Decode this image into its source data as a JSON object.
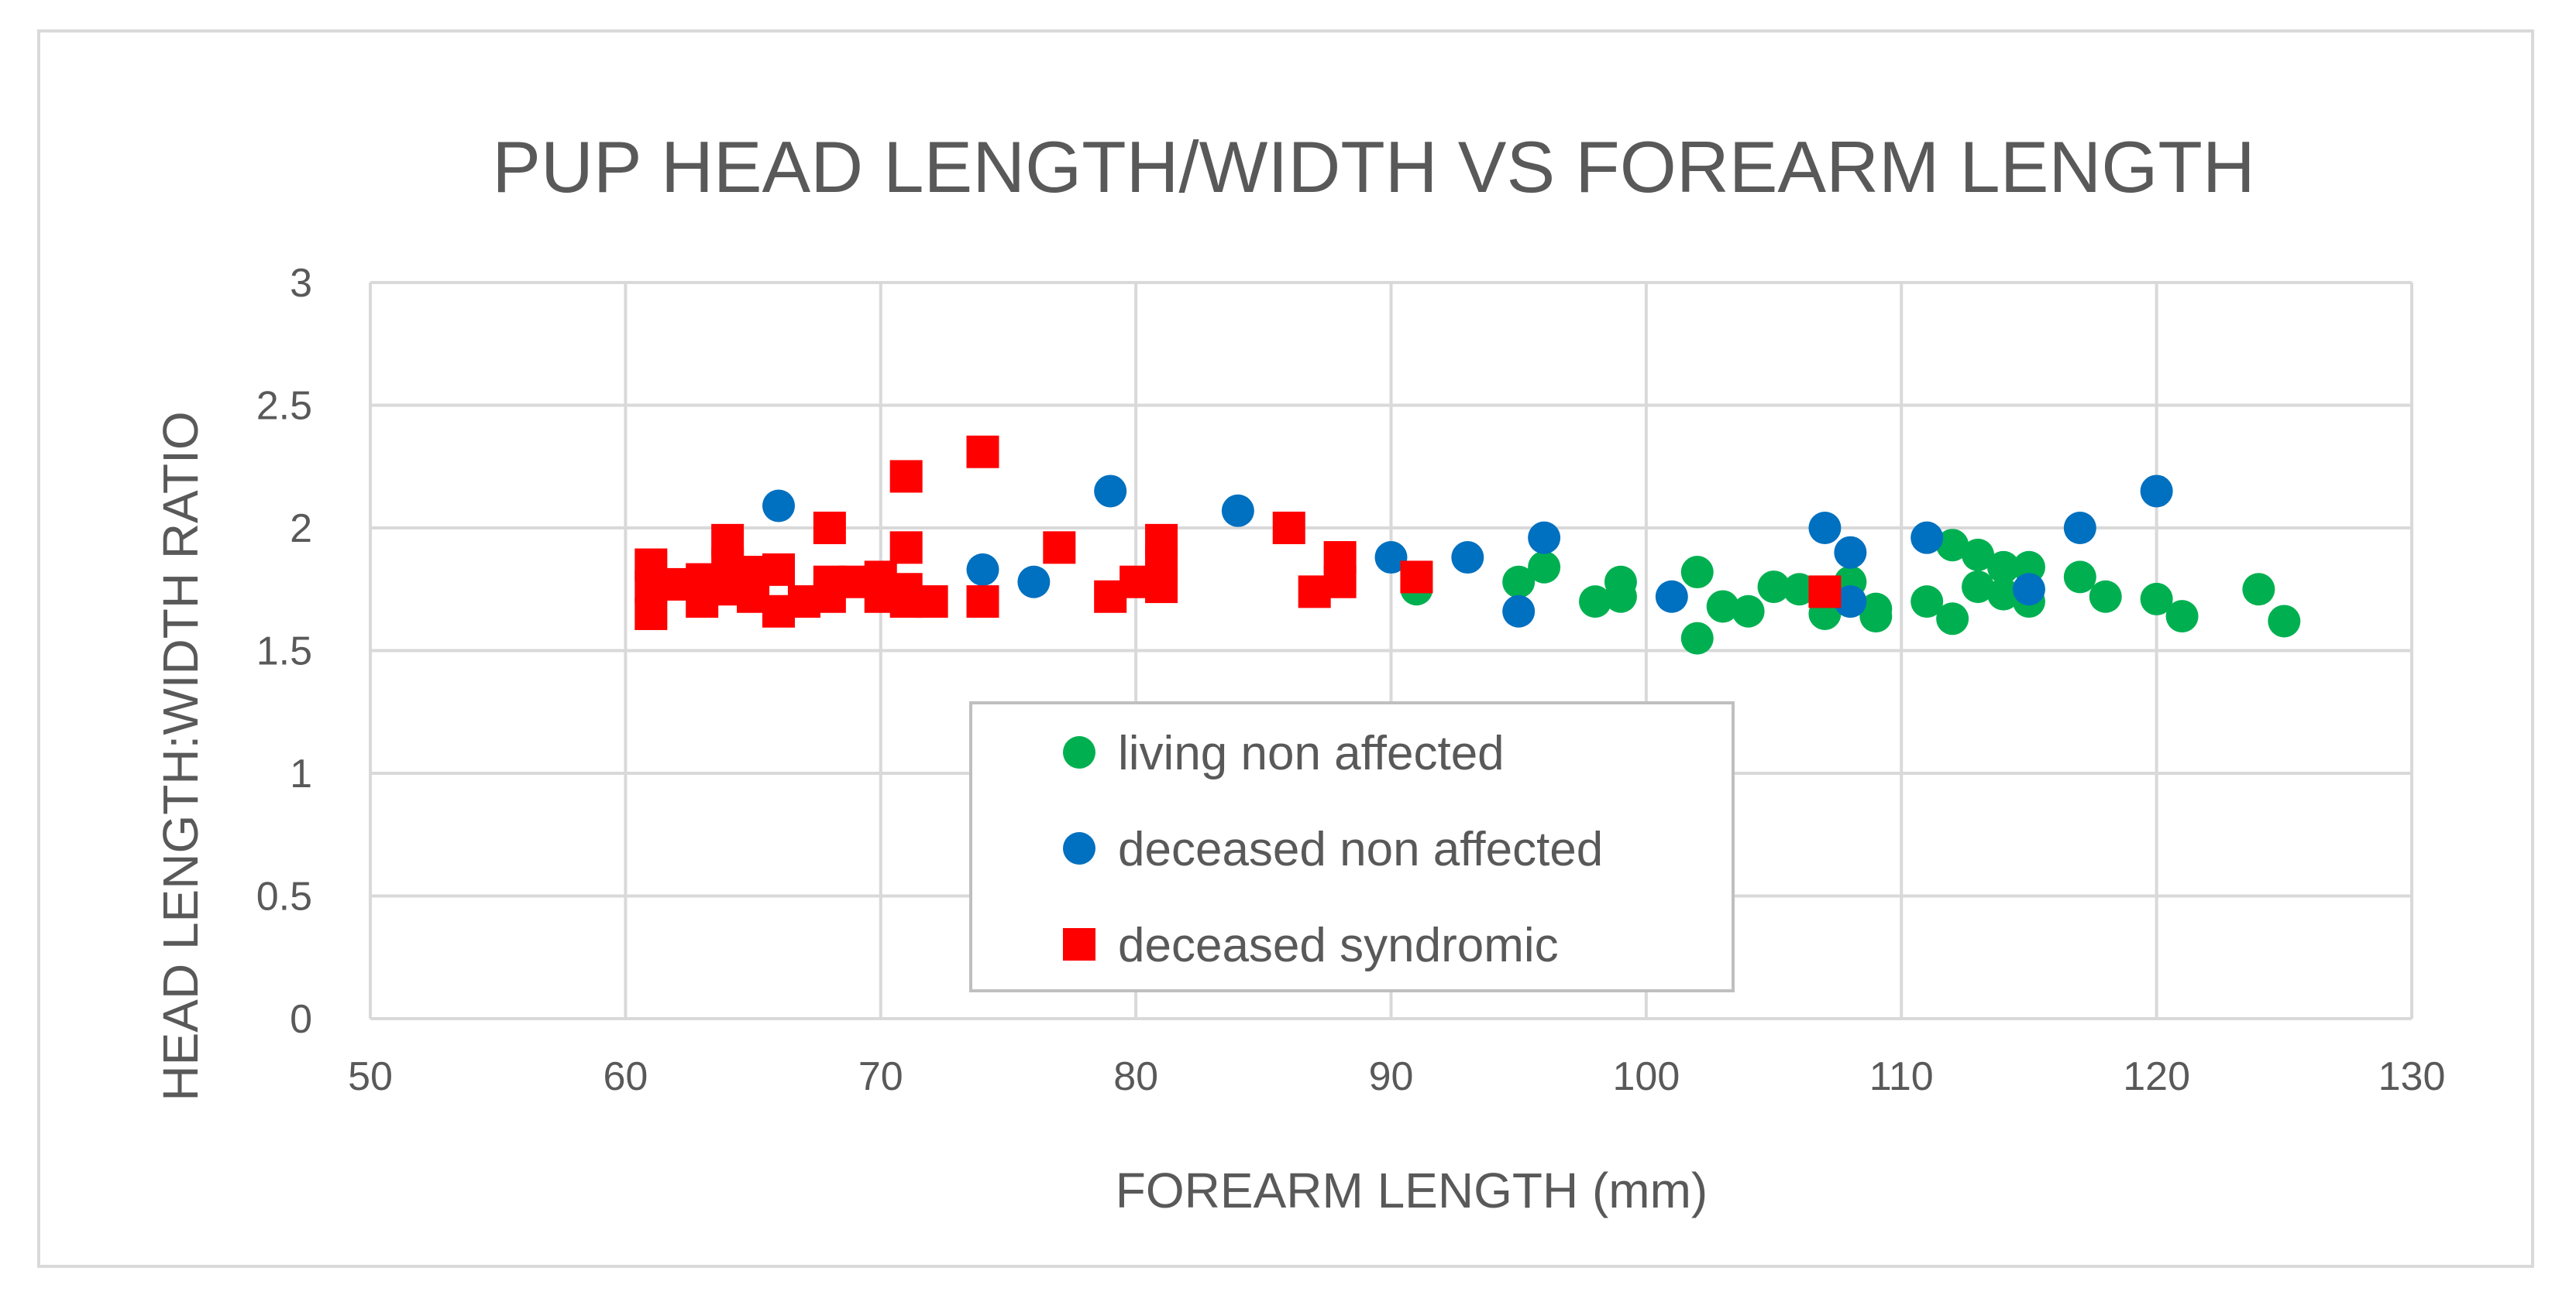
{
  "chart_data": {
    "type": "scatter",
    "title": "PUP HEAD LENGTH/WIDTH VS FOREARM LENGTH",
    "xlabel": "FOREARM LENGTH (mm)",
    "ylabel": "HEAD LENGTH:WIDTH RATIO",
    "xlim": [
      50,
      130
    ],
    "ylim": [
      0,
      3
    ],
    "x_ticks": [
      "50",
      "60",
      "70",
      "80",
      "90",
      "100",
      "110",
      "120",
      "130"
    ],
    "y_ticks": [
      "0",
      "0.5",
      "1",
      "1.5",
      "2",
      "2.5",
      "3"
    ],
    "grid": true,
    "legend_position": "center",
    "series": [
      {
        "name": "living non affected",
        "marker": "circle",
        "color": "#00b050",
        "points": [
          [
            91,
            1.75
          ],
          [
            95,
            1.78
          ],
          [
            96,
            1.84
          ],
          [
            98,
            1.7
          ],
          [
            99,
            1.72
          ],
          [
            99,
            1.78
          ],
          [
            102,
            1.82
          ],
          [
            102,
            1.55
          ],
          [
            103,
            1.68
          ],
          [
            104,
            1.66
          ],
          [
            105,
            1.76
          ],
          [
            106,
            1.75
          ],
          [
            107,
            1.65
          ],
          [
            107,
            1.72
          ],
          [
            108,
            1.78
          ],
          [
            108,
            1.7
          ],
          [
            109,
            1.67
          ],
          [
            109,
            1.64
          ],
          [
            111,
            1.7
          ],
          [
            112,
            1.93
          ],
          [
            112,
            1.63
          ],
          [
            113,
            1.89
          ],
          [
            113,
            1.76
          ],
          [
            114,
            1.84
          ],
          [
            114,
            1.73
          ],
          [
            115,
            1.84
          ],
          [
            115,
            1.7
          ],
          [
            117,
            1.8
          ],
          [
            118,
            1.72
          ],
          [
            120,
            1.71
          ],
          [
            121,
            1.64
          ],
          [
            124,
            1.75
          ],
          [
            125,
            1.62
          ]
        ]
      },
      {
        "name": "deceased non affected",
        "marker": "circle",
        "color": "#0070c0",
        "points": [
          [
            66,
            2.09
          ],
          [
            74,
            1.83
          ],
          [
            76,
            1.78
          ],
          [
            79,
            2.15
          ],
          [
            84,
            2.07
          ],
          [
            90,
            1.88
          ],
          [
            93,
            1.88
          ],
          [
            95,
            1.66
          ],
          [
            96,
            1.96
          ],
          [
            101,
            1.72
          ],
          [
            107,
            2.0
          ],
          [
            108,
            1.9
          ],
          [
            108,
            1.7
          ],
          [
            111,
            1.96
          ],
          [
            115,
            1.75
          ],
          [
            117,
            2.0
          ],
          [
            120,
            2.15
          ]
        ]
      },
      {
        "name": "deceased syndromic",
        "marker": "square",
        "color": "#ff0000",
        "points": [
          [
            61,
            1.85
          ],
          [
            61,
            1.76
          ],
          [
            61,
            1.65
          ],
          [
            62,
            1.77
          ],
          [
            63,
            1.79
          ],
          [
            63,
            1.7
          ],
          [
            64,
            1.95
          ],
          [
            64,
            1.85
          ],
          [
            64,
            1.75
          ],
          [
            65,
            1.82
          ],
          [
            65,
            1.72
          ],
          [
            66,
            1.83
          ],
          [
            66,
            1.66
          ],
          [
            67,
            1.7
          ],
          [
            68,
            2.0
          ],
          [
            68,
            1.78
          ],
          [
            68,
            1.72
          ],
          [
            69,
            1.78
          ],
          [
            70,
            1.8
          ],
          [
            70,
            1.72
          ],
          [
            71,
            2.21
          ],
          [
            71,
            1.92
          ],
          [
            71,
            1.75
          ],
          [
            71,
            1.7
          ],
          [
            72,
            1.7
          ],
          [
            74,
            2.31
          ],
          [
            74,
            1.7
          ],
          [
            77,
            1.92
          ],
          [
            79,
            1.72
          ],
          [
            80,
            1.78
          ],
          [
            81,
            1.95
          ],
          [
            81,
            1.85
          ],
          [
            81,
            1.76
          ],
          [
            86,
            2.0
          ],
          [
            87,
            1.74
          ],
          [
            88,
            1.88
          ],
          [
            88,
            1.78
          ],
          [
            91,
            1.8
          ],
          [
            107,
            1.74
          ]
        ]
      }
    ]
  }
}
